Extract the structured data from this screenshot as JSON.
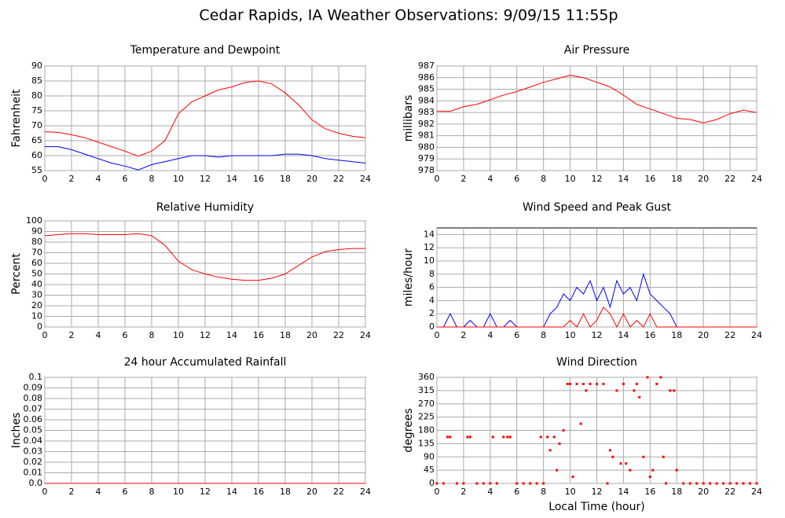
{
  "title": "Cedar Rapids, IA Weather Observations: 9/09/15 11:55p",
  "chart_data": [
    {
      "type": "line",
      "title": "Temperature and Dewpoint",
      "ylabel": "Fahrenheit",
      "x": [
        0,
        1,
        2,
        3,
        4,
        5,
        6,
        7,
        8,
        9,
        10,
        11,
        12,
        13,
        14,
        15,
        16,
        17,
        18,
        19,
        20,
        21,
        22,
        23,
        24
      ],
      "series": [
        {
          "color": "#ff0000",
          "values": [
            68,
            67.8,
            67,
            66,
            64.5,
            63,
            61.5,
            59.8,
            61.5,
            65,
            74,
            78,
            80,
            82,
            83,
            84.5,
            85,
            84,
            81,
            77,
            72,
            69,
            67.5,
            66.5,
            66
          ]
        },
        {
          "color": "#0000ff",
          "values": [
            63,
            63,
            62,
            60.5,
            59,
            57.5,
            56.5,
            55.2,
            57,
            58,
            59,
            60,
            60,
            59.5,
            60,
            60,
            60,
            60,
            60.5,
            60.5,
            60,
            59,
            58.5,
            58,
            57.5
          ]
        }
      ],
      "xlim": [
        0,
        24
      ],
      "xticks": [
        0,
        2,
        4,
        6,
        8,
        10,
        12,
        14,
        16,
        18,
        20,
        22,
        24
      ],
      "ylim": [
        55,
        90
      ],
      "yticks": [
        55,
        60,
        65,
        70,
        75,
        80,
        85,
        90
      ],
      "grid": true
    },
    {
      "type": "line",
      "title": "Air Pressure",
      "ylabel": "millibars",
      "x": [
        0,
        1,
        2,
        3,
        4,
        5,
        6,
        7,
        8,
        9,
        10,
        11,
        12,
        13,
        14,
        15,
        16,
        17,
        18,
        19,
        20,
        21,
        22,
        23,
        24
      ],
      "series": [
        {
          "color": "#ff0000",
          "values": [
            983.1,
            983.1,
            983.5,
            983.7,
            984.1,
            984.5,
            984.8,
            985.2,
            985.6,
            985.9,
            986.2,
            986.0,
            985.6,
            985.2,
            984.5,
            983.7,
            983.3,
            982.9,
            982.5,
            982.4,
            982.1,
            982.4,
            982.9,
            983.2,
            983.0
          ]
        }
      ],
      "xlim": [
        0,
        24
      ],
      "xticks": [
        0,
        2,
        4,
        6,
        8,
        10,
        12,
        14,
        16,
        18,
        20,
        22,
        24
      ],
      "ylim": [
        978,
        987
      ],
      "yticks": [
        978,
        979,
        980,
        981,
        982,
        983,
        984,
        985,
        986,
        987
      ],
      "grid": true
    },
    {
      "type": "line",
      "title": "Relative Humidity",
      "ylabel": "Percent",
      "x": [
        0,
        1,
        2,
        3,
        4,
        5,
        6,
        7,
        8,
        9,
        10,
        11,
        12,
        13,
        14,
        15,
        16,
        17,
        18,
        19,
        20,
        21,
        22,
        23,
        24
      ],
      "series": [
        {
          "color": "#ff0000",
          "values": [
            86,
            87,
            88,
            88,
            87,
            87,
            87,
            88,
            86,
            77,
            62,
            54,
            50,
            47,
            45,
            44,
            44,
            46,
            50,
            58,
            66,
            71,
            73,
            74,
            74
          ]
        }
      ],
      "xlim": [
        0,
        24
      ],
      "xticks": [
        0,
        2,
        4,
        6,
        8,
        10,
        12,
        14,
        16,
        18,
        20,
        22,
        24
      ],
      "ylim": [
        0,
        100
      ],
      "yticks": [
        0,
        10,
        20,
        30,
        40,
        50,
        60,
        70,
        80,
        90,
        100
      ],
      "grid": true
    },
    {
      "type": "line",
      "title": "Wind Speed and Peak Gust",
      "ylabel": "miles/hour",
      "x": [
        0,
        0.5,
        1,
        1.5,
        2,
        2.5,
        3,
        3.5,
        4,
        4.5,
        5,
        5.5,
        6,
        6.5,
        7,
        7.5,
        8,
        8.5,
        9,
        9.5,
        10,
        10.5,
        11,
        11.5,
        12,
        12.5,
        13,
        13.5,
        14,
        14.5,
        15,
        15.5,
        16,
        16.5,
        17,
        17.5,
        18,
        18.5,
        19,
        19.5,
        20,
        20.5,
        21,
        21.5,
        22,
        22.5,
        23,
        23.5,
        24
      ],
      "series": [
        {
          "color": "#0000ff",
          "values": [
            0,
            0,
            2,
            0,
            0,
            1,
            0,
            0,
            2,
            0,
            0,
            1,
            0,
            0,
            0,
            0,
            0,
            2,
            3,
            5,
            4,
            6,
            5,
            7,
            4,
            6,
            3,
            7,
            5,
            6,
            4,
            8,
            5,
            4,
            3,
            2,
            0,
            0,
            0,
            0,
            0,
            0,
            0,
            0,
            0,
            0,
            0,
            0,
            0
          ]
        },
        {
          "color": "#ff0000",
          "values": [
            0,
            0,
            0,
            0,
            0,
            0,
            0,
            0,
            0,
            0,
            0,
            0,
            0,
            0,
            0,
            0,
            0,
            0,
            0,
            0,
            1,
            0,
            2,
            0,
            1,
            3,
            2,
            0,
            2,
            0,
            1,
            0,
            2,
            0,
            0,
            0,
            0,
            0,
            0,
            0,
            0,
            0,
            0,
            0,
            0,
            0,
            0,
            0,
            0
          ]
        }
      ],
      "xlim": [
        0,
        24
      ],
      "xticks": [
        0,
        2,
        4,
        6,
        8,
        10,
        12,
        14,
        16,
        18,
        20,
        22,
        24
      ],
      "ylim": [
        0,
        15
      ],
      "yticks": [
        0,
        2,
        4,
        6,
        8,
        10,
        12,
        14
      ],
      "grid": true
    },
    {
      "type": "line",
      "title": "24 hour Accumulated Rainfall",
      "ylabel": "Inches",
      "x": [
        0,
        24
      ],
      "series": [
        {
          "color": "#ff0000",
          "values": [
            0,
            0
          ]
        }
      ],
      "xlim": [
        0,
        24
      ],
      "xticks": [
        0,
        2,
        4,
        6,
        8,
        10,
        12,
        14,
        16,
        18,
        20,
        22,
        24
      ],
      "ylim": [
        0,
        0.1
      ],
      "yticks": [
        {
          "value": 0,
          "label": "0.0"
        },
        0.01,
        0.02,
        0.03,
        0.04,
        0.05,
        0.06,
        0.07,
        0.08,
        0.09,
        {
          "value": 0.1,
          "label": "0.1"
        }
      ],
      "grid": true
    },
    {
      "type": "scatter",
      "title": "Wind Direction",
      "ylabel": "degrees",
      "xlabel": "Local Time (hour)",
      "color": "#ff0000",
      "x": [
        0,
        0.5,
        0.8,
        1,
        1.5,
        2,
        2.3,
        2.5,
        3,
        3.5,
        4,
        4.2,
        4.5,
        5,
        5.3,
        5.5,
        6,
        6.5,
        7,
        7.5,
        7.8,
        8,
        8.3,
        8.5,
        8.8,
        9,
        9.2,
        9.5,
        9.8,
        10,
        10.2,
        10.5,
        10.8,
        11,
        11.2,
        11.5,
        12,
        12.5,
        12.8,
        13,
        13.2,
        13.5,
        13.8,
        14,
        14.2,
        14.5,
        14.8,
        15,
        15.2,
        15.5,
        15.8,
        16,
        16.2,
        16.5,
        16.8,
        17,
        17.2,
        17.5,
        17.8,
        18,
        18.5,
        19,
        19.5,
        20,
        20.5,
        21,
        21.5,
        22,
        22.5,
        23,
        23.5,
        24
      ],
      "values": [
        0,
        0,
        157.5,
        157.5,
        0,
        0,
        157.5,
        157.5,
        0,
        0,
        0,
        157.5,
        0,
        157.5,
        157.5,
        157.5,
        0,
        0,
        0,
        0,
        157.5,
        0,
        157.5,
        112.5,
        157.5,
        45,
        135,
        180,
        337.5,
        337.5,
        22.5,
        337.5,
        202.5,
        337.5,
        315,
        337.5,
        337.5,
        337.5,
        0,
        112.5,
        90,
        315,
        67.5,
        337.5,
        67.5,
        45,
        315,
        337.5,
        292.5,
        90,
        360,
        22.5,
        45,
        337.5,
        360,
        90,
        0,
        315,
        315,
        45,
        0,
        0,
        0,
        0,
        0,
        0,
        0,
        0,
        0,
        0,
        0,
        0
      ],
      "xlim": [
        0,
        24
      ],
      "xticks": [
        0,
        2,
        4,
        6,
        8,
        10,
        12,
        14,
        16,
        18,
        20,
        22,
        24
      ],
      "ylim": [
        0,
        360
      ],
      "yticks": [
        0,
        45,
        90,
        135,
        180,
        225,
        270,
        315,
        360
      ],
      "grid": true
    }
  ]
}
